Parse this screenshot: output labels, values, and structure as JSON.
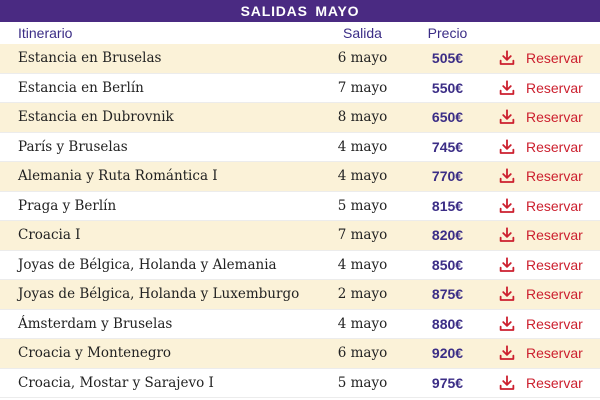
{
  "title": "SALIDAS  MAYO",
  "headers": {
    "itinerario": "Itinerario",
    "salida": "Salida",
    "precio": "Precio"
  },
  "action_icon": "download-icon",
  "colors": {
    "banner": "#4a2a82",
    "header_text": "#3b2d86",
    "price": "#3b2d86",
    "action": "#cc1f2e",
    "row_alt": "#fbf2d8"
  },
  "rows": [
    {
      "itinerario": "Estancia en Bruselas",
      "salida": "6 mayo",
      "precio": "505€",
      "accion": "Reservar"
    },
    {
      "itinerario": "Estancia en Berlín",
      "salida": "7 mayo",
      "precio": "550€",
      "accion": "Reservar"
    },
    {
      "itinerario": "Estancia en Dubrovnik",
      "salida": "8 mayo",
      "precio": "650€",
      "accion": "Reservar"
    },
    {
      "itinerario": "París y Bruselas",
      "salida": "4 mayo",
      "precio": "745€",
      "accion": "Reservar"
    },
    {
      "itinerario": "Alemania y Ruta Romántica I",
      "salida": "4 mayo",
      "precio": "770€",
      "accion": "Reservar"
    },
    {
      "itinerario": "Praga y Berlín",
      "salida": "5 mayo",
      "precio": "815€",
      "accion": "Reservar"
    },
    {
      "itinerario": "Croacia I",
      "salida": "7 mayo",
      "precio": "820€",
      "accion": "Reservar"
    },
    {
      "itinerario": "Joyas de Bélgica, Holanda y Alemania",
      "salida": "4 mayo",
      "precio": "850€",
      "accion": "Reservar"
    },
    {
      "itinerario": "Joyas de Bélgica, Holanda y Luxemburgo",
      "salida": "2 mayo",
      "precio": "875€",
      "accion": "Reservar"
    },
    {
      "itinerario": "Ámsterdam y Bruselas",
      "salida": "4 mayo",
      "precio": "880€",
      "accion": "Reservar"
    },
    {
      "itinerario": "Croacia y Montenegro",
      "salida": "6 mayo",
      "precio": "920€",
      "accion": "Reservar"
    },
    {
      "itinerario": "Croacia, Mostar y Sarajevo I",
      "salida": "5 mayo",
      "precio": "975€",
      "accion": "Reservar"
    }
  ]
}
